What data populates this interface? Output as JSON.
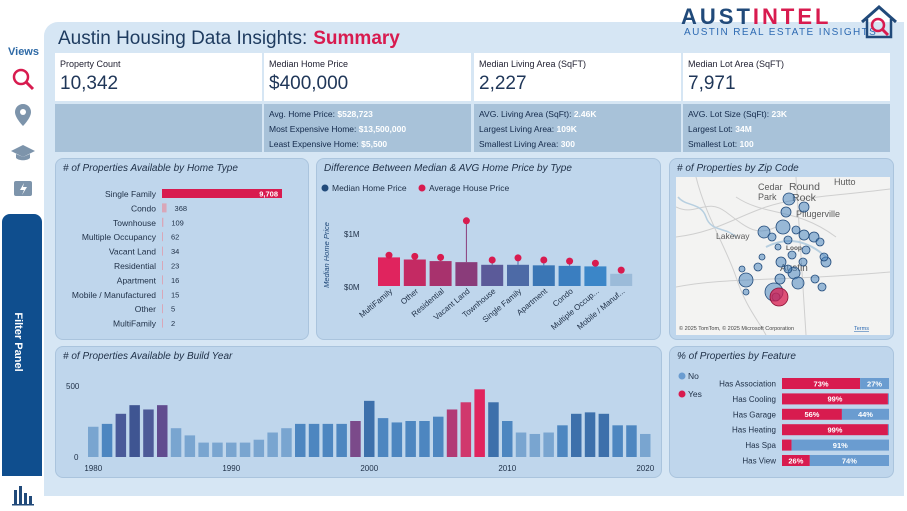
{
  "header": {
    "title": "Austin Housing Data Insights:",
    "title_highlight": "Summary",
    "brand_name_a": "AUST",
    "brand_name_b": "INTEL",
    "brand_sub": "AUSTIN REAL ESTATE INSIGHTS"
  },
  "sidebar": {
    "title": "Views",
    "icons": [
      "search-icon",
      "map-pin-icon",
      "graduation-cap-icon",
      "chart-lightning-icon"
    ],
    "filter_label": "Filter Panel",
    "bottom_icon": "bar-chart-icon"
  },
  "colors": {
    "accent": "#d81b4f",
    "navy": "#214a7a",
    "blue": "#4d86c0",
    "purple": "#7b4a8a"
  },
  "kpis": [
    {
      "label": "Property Count",
      "value": "10,342",
      "details": []
    },
    {
      "label": "Median Home Price",
      "value": "$400,000",
      "details": [
        {
          "label": "Avg. Home Price:",
          "value": "$528,723"
        },
        {
          "label": "Most Expensive Home:",
          "value": "$13,500,000"
        },
        {
          "label": "Least Expensive Home:",
          "value": "$5,500"
        }
      ]
    },
    {
      "label": "Median Living Area (SqFT)",
      "value": "2,227",
      "details": [
        {
          "label": "AVG. Living Area (SqFt):",
          "value": "2.46K"
        },
        {
          "label": "Largest Living Area:",
          "value": "109K"
        },
        {
          "label": "Smallest Living Area:",
          "value": "300"
        }
      ]
    },
    {
      "label": "Median Lot Area (SqFT)",
      "value": "7,971",
      "details": [
        {
          "label": "AVG. Lot Size (SqFt):",
          "value": "23K"
        },
        {
          "label": "Largest Lot:",
          "value": "34M"
        },
        {
          "label": "Smallest Lot:",
          "value": "100"
        }
      ]
    }
  ],
  "chart_data": [
    {
      "type": "bar",
      "orientation": "horizontal",
      "title": "# of Properties Available by Home Type",
      "categories": [
        "Single Family",
        "Condo",
        "Townhouse",
        "Multiple Occupancy",
        "Vacant Land",
        "Residential",
        "Apartment",
        "Mobile / Manufactured",
        "Other",
        "MultiFamily"
      ],
      "values": [
        9708,
        368,
        109,
        62,
        34,
        23,
        16,
        15,
        5,
        2
      ],
      "value_labels": [
        "9,708",
        "368",
        "109",
        "62",
        "34",
        "23",
        "16",
        "15",
        "5",
        "2"
      ]
    },
    {
      "type": "bar",
      "title": "Difference Between Median & AVG Home Price by Type",
      "ylabel": "Median Home Price",
      "yticks": [
        "$1M",
        "$0M"
      ],
      "ylim": [
        0,
        1500000
      ],
      "legend": [
        "Median Home Price",
        "Average House Price"
      ],
      "categories": [
        "MultiFamily",
        "Other",
        "Residential",
        "Vacant Land",
        "Townhouse",
        "Single Family",
        "Apartment",
        "Condo",
        "Multiple Occup...",
        "Mobile / Manuf..."
      ],
      "series": [
        {
          "name": "Median Home Price",
          "values": [
            540000,
            500000,
            470000,
            450000,
            400000,
            400000,
            390000,
            380000,
            370000,
            230000
          ]
        },
        {
          "name": "Average House Price",
          "values": [
            580000,
            560000,
            540000,
            1230000,
            490000,
            530000,
            490000,
            470000,
            430000,
            300000
          ]
        }
      ]
    },
    {
      "type": "scatter",
      "title": "# of Properties by Zip Code",
      "map_labels": [
        "Cedar",
        "Park",
        "Round",
        "Rock",
        "Hutto",
        "Pflugerville",
        "Lakeway",
        "Loop",
        "Austin"
      ],
      "attribution": "© 2025 TomTom, © 2025 Microsoft Corporation",
      "attribution_link": "Terms"
    },
    {
      "type": "bar",
      "title": "# of Properties Available by Build Year",
      "yticks": [
        "500",
        "0"
      ],
      "ylim": [
        0,
        550
      ],
      "xticks": [
        "1980",
        "1990",
        "2000",
        "2010",
        "2020"
      ],
      "x": [
        1980,
        1981,
        1982,
        1983,
        1984,
        1985,
        1986,
        1987,
        1988,
        1989,
        1990,
        1991,
        1992,
        1993,
        1994,
        1995,
        1996,
        1997,
        1998,
        1999,
        2000,
        2001,
        2002,
        2003,
        2004,
        2005,
        2006,
        2007,
        2008,
        2009,
        2010,
        2011,
        2012,
        2013,
        2014,
        2015,
        2016,
        2017,
        2018,
        2019,
        2020
      ],
      "values": [
        210,
        230,
        300,
        360,
        330,
        360,
        200,
        150,
        100,
        100,
        100,
        100,
        120,
        170,
        200,
        230,
        230,
        230,
        230,
        250,
        390,
        270,
        240,
        250,
        250,
        280,
        330,
        380,
        470,
        380,
        250,
        170,
        160,
        170,
        220,
        300,
        310,
        300,
        220,
        220,
        160
      ]
    },
    {
      "type": "bar",
      "orientation": "horizontal",
      "stacked": true,
      "title": "% of Properties by Feature",
      "legend": [
        "No",
        "Yes"
      ],
      "categories": [
        "Has Association",
        "Has Cooling",
        "Has Garage",
        "Has Heating",
        "Has Spa",
        "Has View"
      ],
      "series": [
        {
          "name": "Yes",
          "values": [
            73,
            99,
            56,
            99,
            9,
            26
          ]
        },
        {
          "name": "No",
          "values": [
            27,
            1,
            44,
            1,
            91,
            74
          ]
        }
      ],
      "yes_labels": [
        "73%",
        "99%",
        "56%",
        "99%",
        "",
        "26%"
      ],
      "no_labels": [
        "27%",
        "",
        "44%",
        "",
        "91%",
        "74%"
      ]
    }
  ]
}
